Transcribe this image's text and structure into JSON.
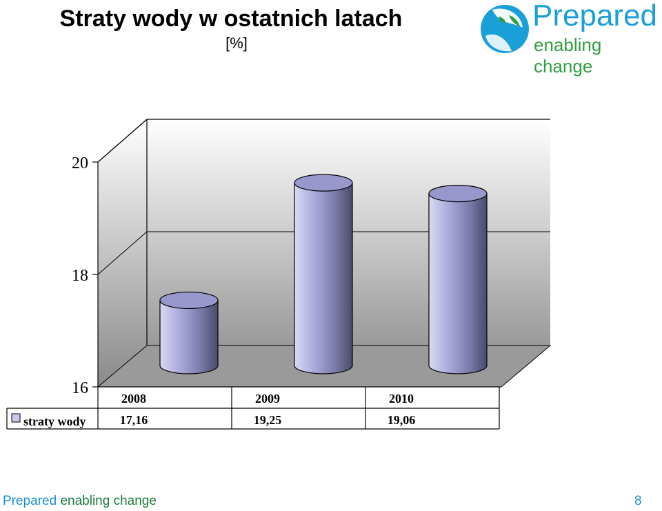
{
  "header": {
    "title": "Straty wody w ostatnich latach",
    "subtitle": "[%]"
  },
  "logo": {
    "name": "Prepared",
    "tagline": "enabling change",
    "colors": {
      "blue": "#1aa0d8",
      "green": "#2f9e3e"
    }
  },
  "chart_data": {
    "type": "bar",
    "style": "3d-cylinder",
    "categories": [
      "2008",
      "2009",
      "2010"
    ],
    "series": [
      {
        "name": "straty wody",
        "values": [
          17.16,
          19.25,
          19.06
        ],
        "value_labels": [
          "17,16",
          "19,25",
          "19,06"
        ],
        "color": "#a7a7d6"
      }
    ],
    "y_ticks": [
      "16",
      "18",
      "20"
    ],
    "ylim": [
      16,
      20
    ],
    "grid": true,
    "legend": "data-table",
    "data_table": true
  },
  "footer": {
    "left_a": "Prepared",
    "left_b": "enabling change",
    "page_number": "8"
  }
}
